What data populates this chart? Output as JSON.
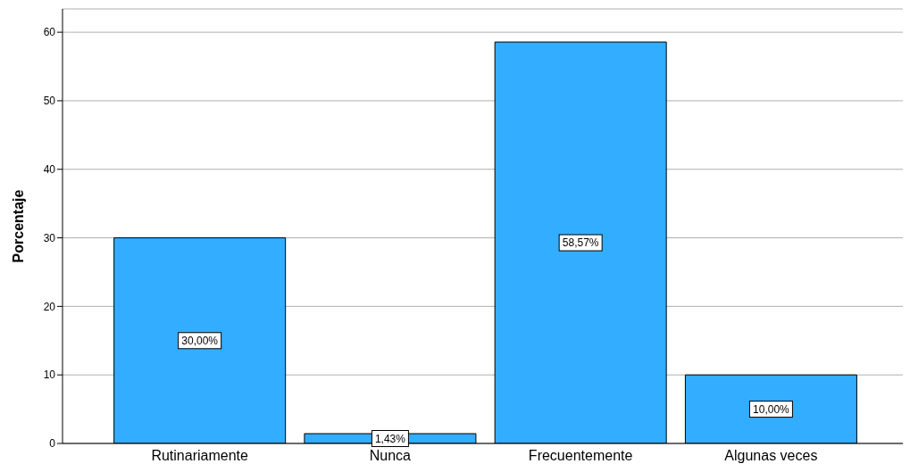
{
  "chart_data": {
    "type": "bar",
    "ylabel": "Porcentaje",
    "categories": [
      "Rutinariamente",
      "Nunca",
      "Frecuentemente",
      "Algunas veces"
    ],
    "values": [
      30.0,
      1.43,
      58.57,
      10.0
    ],
    "value_labels": [
      "30,00%",
      "1,43%",
      "58,57%",
      "10,00%"
    ],
    "color": "#33adff",
    "ylim": [
      0,
      63.4
    ],
    "yticks": [
      0,
      10,
      20,
      30,
      40,
      50,
      60
    ],
    "grid": "y"
  }
}
